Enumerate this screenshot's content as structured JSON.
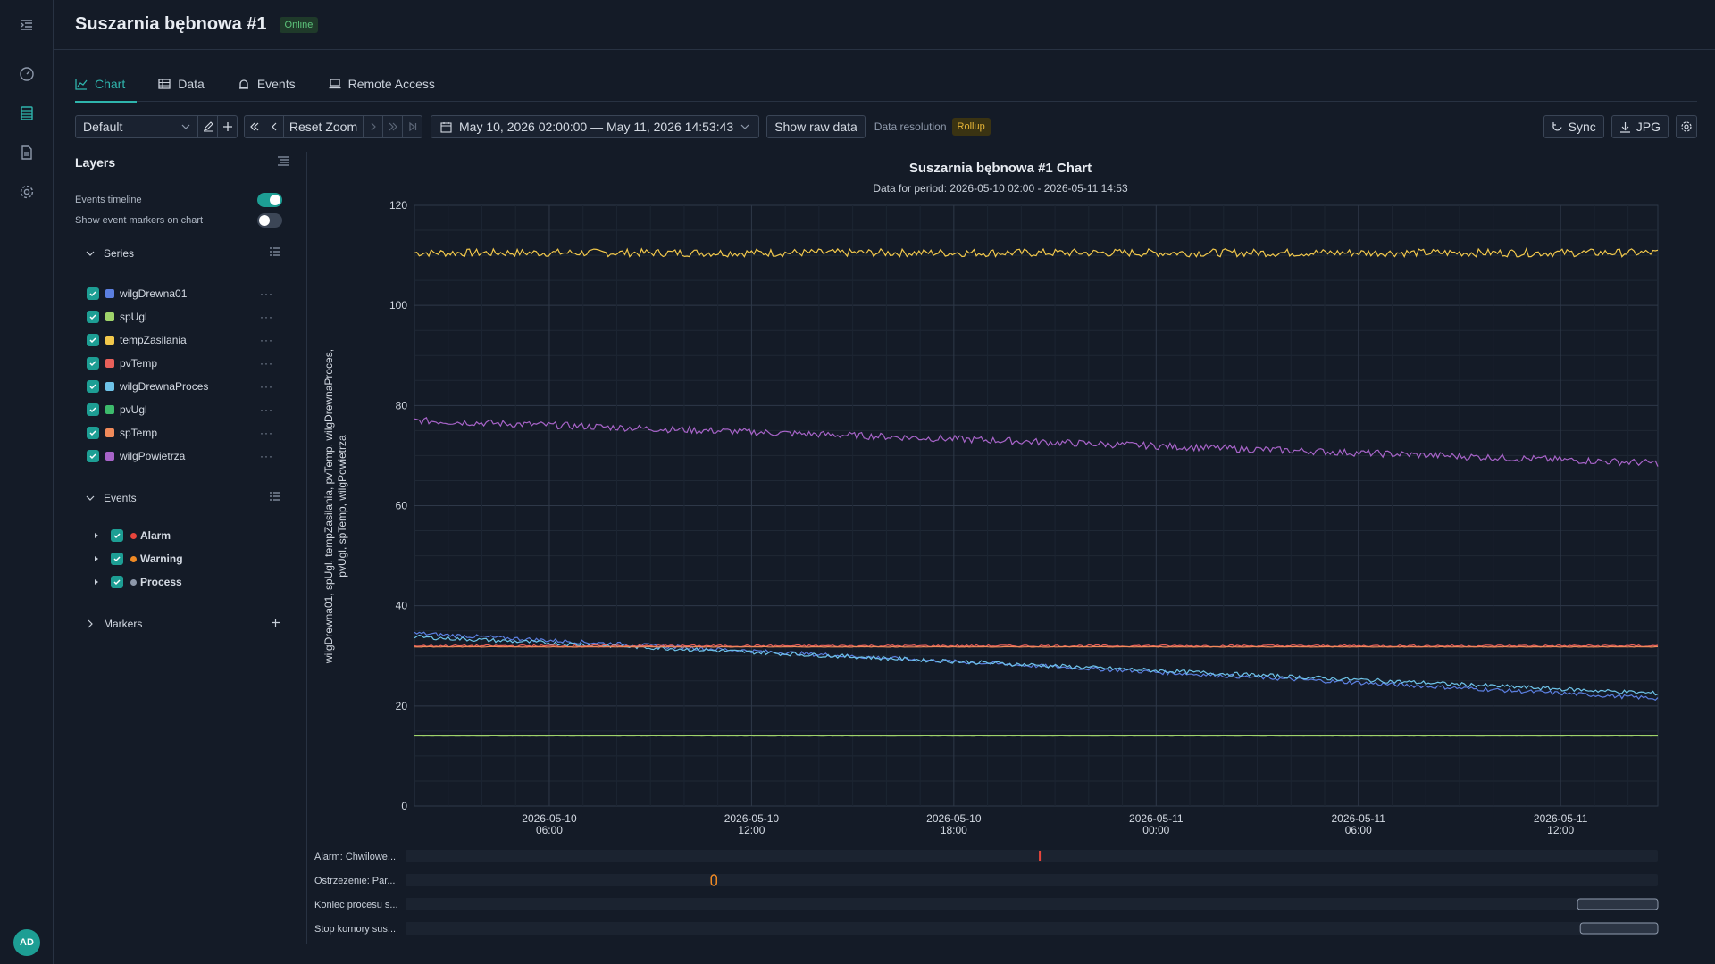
{
  "header": {
    "title": "Suszarnia bębnowa #1",
    "status": "Online",
    "status_color": "#5cc27a"
  },
  "user": {
    "initials": "AD"
  },
  "tabs": [
    {
      "label": "Chart",
      "icon": "chart-line-icon",
      "active": true
    },
    {
      "label": "Data",
      "icon": "table-icon",
      "active": false
    },
    {
      "label": "Events",
      "icon": "alarm-bell-icon",
      "active": false
    },
    {
      "label": "Remote Access",
      "icon": "laptop-icon",
      "active": false
    }
  ],
  "toolbar": {
    "preset": "Default",
    "reset_zoom": "Reset Zoom",
    "date_range": "May 10, 2026 02:00:00 — May 11, 2026 14:53:43",
    "show_raw": "Show raw data",
    "resolution_label": "Data resolution",
    "resolution_value": "Rollup",
    "sync": "Sync",
    "jpg": "JPG"
  },
  "layers": {
    "title": "Layers",
    "events_timeline": {
      "label": "Events timeline",
      "on": true
    },
    "event_markers": {
      "label": "Show event markers on chart",
      "on": false
    },
    "series_header": "Series",
    "series": [
      {
        "name": "wilgDrewna01",
        "color": "#5b7fe0"
      },
      {
        "name": "spUgl",
        "color": "#9fd36a"
      },
      {
        "name": "tempZasilania",
        "color": "#f2c84b"
      },
      {
        "name": "pvTemp",
        "color": "#e8605a"
      },
      {
        "name": "wilgDrewnaProces",
        "color": "#6ec3e8"
      },
      {
        "name": "pvUgl",
        "color": "#3dbb6c"
      },
      {
        "name": "spTemp",
        "color": "#f08a5a"
      },
      {
        "name": "wilgPowietrza",
        "color": "#a864c9"
      }
    ],
    "events_header": "Events",
    "events": [
      {
        "name": "Alarm",
        "color": "#e8453c"
      },
      {
        "name": "Warning",
        "color": "#f08a24"
      },
      {
        "name": "Process",
        "color": "#8e99ab"
      }
    ],
    "markers_header": "Markers"
  },
  "chart_data": {
    "type": "line",
    "title": "Suszarnia bębnowa #1 Chart",
    "subtitle": "Data for period: 2026-05-10 02:00 - 2026-05-11 14:53",
    "ylabel": "wilgDrewna01, spUgl, tempZasilania, pvTemp, wilgDrewnaProces, pvUgl, spTemp, wilgPowietrza",
    "xlim": [
      "2026-05-10 02:00",
      "2026-05-11 14:53"
    ],
    "ylim": [
      0,
      120
    ],
    "yticks": [
      0,
      20,
      40,
      60,
      80,
      100,
      120
    ],
    "xticks": [
      {
        "t": "2026-05-10 06:00",
        "line1": "2026-05-10",
        "line2": "06:00"
      },
      {
        "t": "2026-05-10 12:00",
        "line1": "2026-05-10",
        "line2": "12:00"
      },
      {
        "t": "2026-05-10 18:00",
        "line1": "2026-05-10",
        "line2": "18:00"
      },
      {
        "t": "2026-05-11 00:00",
        "line1": "2026-05-11",
        "line2": "00:00"
      },
      {
        "t": "2026-05-11 06:00",
        "line1": "2026-05-11",
        "line2": "06:00"
      },
      {
        "t": "2026-05-11 12:00",
        "line1": "2026-05-11",
        "line2": "12:00"
      }
    ],
    "grid": true,
    "series": [
      {
        "name": "tempZasilania",
        "color": "#f2c84b",
        "start": 110.5,
        "end": 110.5,
        "noise": 0.8
      },
      {
        "name": "wilgPowietrza",
        "color": "#a864c9",
        "start": 77,
        "end": 68.5,
        "noise": 0.7
      },
      {
        "name": "wilgDrewna01",
        "color": "#5b7fe0",
        "start": 34.5,
        "end": 21.5,
        "noise": 0.4
      },
      {
        "name": "wilgDrewnaProces",
        "color": "#6ec3e8",
        "start": 33.8,
        "end": 22.5,
        "noise": 0.4
      },
      {
        "name": "pvTemp",
        "color": "#e8605a",
        "start": 32,
        "end": 32,
        "noise": 0.2
      },
      {
        "name": "spTemp",
        "color": "#f08a5a",
        "start": 31.8,
        "end": 31.8,
        "noise": 0.05
      },
      {
        "name": "pvUgl",
        "color": "#3dbb6c",
        "start": 14.1,
        "end": 14.1,
        "noise": 0.06
      },
      {
        "name": "spUgl",
        "color": "#9fd36a",
        "start": 14,
        "end": 14,
        "noise": 0.02
      }
    ]
  },
  "timeline": {
    "rows": [
      {
        "label": "Alarm: Chwilowe...",
        "color": "#e8453c",
        "start": "2026-05-10 20:33",
        "end": "2026-05-10 20:33"
      },
      {
        "label": "Ostrzeżenie: Par...",
        "color": "#f08a24",
        "start": "2026-05-10 10:53",
        "end": "2026-05-10 10:53"
      },
      {
        "label": "Koniec procesu s...",
        "color": "#8e99ab",
        "start": "2026-05-11 12:30",
        "end": "2026-05-11 14:53"
      },
      {
        "label": "Stop komory sus...",
        "color": "#8e99ab",
        "start": "2026-05-11 12:35",
        "end": "2026-05-11 14:53"
      }
    ]
  }
}
